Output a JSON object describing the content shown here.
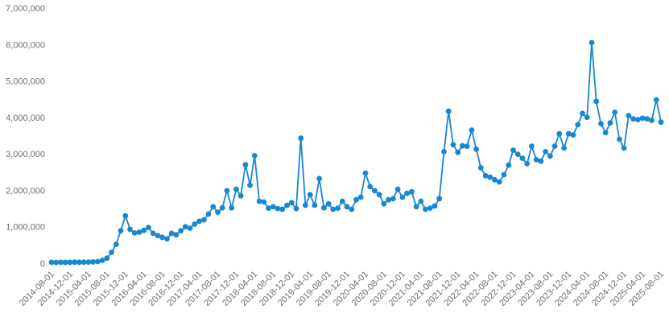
{
  "page": {
    "background": "#ffffff",
    "title": ""
  },
  "chart_data": {
    "type": "line",
    "title": "",
    "xlabel": "",
    "ylabel": "",
    "legend": null,
    "grid": false,
    "marker": "circle",
    "line_color": "#1787d2",
    "marker_color": "#1787d2",
    "axis_label_color": "#6f6f6f",
    "ylim": [
      0,
      7000000
    ],
    "x_tick_every": 4,
    "x": [
      "2014-08-01",
      "2014-09-01",
      "2014-10-01",
      "2014-11-01",
      "2014-12-01",
      "2015-01-01",
      "2015-02-01",
      "2015-03-01",
      "2015-04-01",
      "2015-05-01",
      "2015-06-01",
      "2015-07-01",
      "2015-08-01",
      "2015-09-01",
      "2015-10-01",
      "2015-11-01",
      "2015-12-01",
      "2016-01-01",
      "2016-02-01",
      "2016-03-01",
      "2016-04-01",
      "2016-05-01",
      "2016-06-01",
      "2016-07-01",
      "2016-08-01",
      "2016-09-01",
      "2016-10-01",
      "2016-11-01",
      "2016-12-01",
      "2017-01-01",
      "2017-02-01",
      "2017-03-01",
      "2017-04-01",
      "2017-05-01",
      "2017-06-01",
      "2017-07-01",
      "2017-08-01",
      "2017-09-01",
      "2017-10-01",
      "2017-11-01",
      "2017-12-01",
      "2018-01-01",
      "2018-02-01",
      "2018-03-01",
      "2018-04-01",
      "2018-05-01",
      "2018-06-01",
      "2018-07-01",
      "2018-08-01",
      "2018-09-01",
      "2018-10-01",
      "2018-11-01",
      "2018-12-01",
      "2019-01-01",
      "2019-02-01",
      "2019-03-01",
      "2019-04-01",
      "2019-05-01",
      "2019-06-01",
      "2019-07-01",
      "2019-08-01",
      "2019-09-01",
      "2019-10-01",
      "2019-11-01",
      "2019-12-01",
      "2020-01-01",
      "2020-02-01",
      "2020-03-01",
      "2020-04-01",
      "2020-05-01",
      "2020-06-01",
      "2020-07-01",
      "2020-08-01",
      "2020-09-01",
      "2020-10-01",
      "2020-11-01",
      "2020-12-01",
      "2021-01-01",
      "2021-02-01",
      "2021-03-01",
      "2021-04-01",
      "2021-05-01",
      "2021-06-01",
      "2021-07-01",
      "2021-08-01",
      "2021-09-01",
      "2021-10-01",
      "2021-11-01",
      "2021-12-01",
      "2022-01-01",
      "2022-02-01",
      "2022-03-01",
      "2022-04-01",
      "2022-05-01",
      "2022-06-01",
      "2022-07-01",
      "2022-08-01",
      "2022-09-01",
      "2022-10-01",
      "2022-11-01",
      "2022-12-01",
      "2023-01-01",
      "2023-02-01",
      "2023-03-01",
      "2023-04-01",
      "2023-05-01",
      "2023-06-01",
      "2023-07-01",
      "2023-08-01",
      "2023-09-01",
      "2023-10-01",
      "2023-11-01",
      "2023-12-01",
      "2024-01-01",
      "2024-02-01",
      "2024-03-01",
      "2024-04-01",
      "2024-05-01",
      "2024-06-01",
      "2024-07-01",
      "2024-08-01",
      "2024-09-01",
      "2024-10-01",
      "2024-11-01",
      "2024-12-01",
      "2025-01-01",
      "2025-02-01",
      "2025-03-01",
      "2025-04-01",
      "2025-05-01",
      "2025-06-01",
      "2025-07-01",
      "2025-08-01"
    ],
    "values": [
      25000,
      22000,
      24000,
      23000,
      25000,
      28000,
      26000,
      28000,
      30000,
      35000,
      45000,
      80000,
      140000,
      300000,
      520000,
      890000,
      1300000,
      930000,
      830000,
      850000,
      900000,
      980000,
      820000,
      760000,
      710000,
      670000,
      820000,
      780000,
      890000,
      1000000,
      960000,
      1070000,
      1150000,
      1190000,
      1350000,
      1550000,
      1400000,
      1520000,
      1990000,
      1520000,
      2030000,
      1850000,
      2700000,
      2140000,
      2950000,
      1700000,
      1680000,
      1510000,
      1550000,
      1500000,
      1480000,
      1590000,
      1660000,
      1500000,
      3430000,
      1590000,
      1880000,
      1590000,
      2320000,
      1520000,
      1630000,
      1480000,
      1510000,
      1700000,
      1550000,
      1480000,
      1740000,
      1810000,
      2470000,
      2100000,
      1990000,
      1880000,
      1630000,
      1740000,
      1770000,
      2030000,
      1810000,
      1920000,
      1960000,
      1550000,
      1700000,
      1480000,
      1510000,
      1570000,
      1770000,
      3060000,
      4170000,
      3250000,
      3040000,
      3220000,
      3210000,
      3650000,
      3130000,
      2620000,
      2400000,
      2360000,
      2290000,
      2230000,
      2430000,
      2690000,
      3100000,
      2990000,
      2880000,
      2730000,
      3210000,
      2840000,
      2800000,
      3060000,
      2940000,
      3210000,
      3550000,
      3160000,
      3550000,
      3520000,
      3800000,
      4110000,
      4000000,
      6050000,
      4440000,
      3830000,
      3580000,
      3850000,
      4140000,
      3400000,
      3160000,
      4050000,
      3960000,
      3940000,
      3980000,
      3960000,
      3920000,
      4480000,
      3870000
    ],
    "x_tick_labels": [
      "2014-08-01",
      "2014-12-01",
      "2015-04-01",
      "2015-08-01",
      "2015-12-01",
      "2016-04-01",
      "2016-08-01",
      "2016-12-01",
      "2017-04-01",
      "2017-08-01",
      "2017-12-01",
      "2018-04-01",
      "2018-08-01",
      "2018-12-01",
      "2019-04-01",
      "2019-08-01",
      "2019-12-01",
      "2020-04-01",
      "2020-08-01",
      "2020-12-01",
      "2021-04-01",
      "2021-08-01",
      "2021-12-01",
      "2022-04-01",
      "2022-08-01",
      "2022-12-01",
      "2023-04-01",
      "2023-08-01",
      "2023-12-01",
      "2024-04-01",
      "2024-08-01",
      "2024-12-01",
      "2025-04-01",
      "2025-08-01"
    ],
    "y_tick_labels": [
      "0",
      "1,000,000",
      "2,000,000",
      "3,000,000",
      "4,000,000",
      "5,000,000",
      "6,000,000",
      "7,000,000"
    ]
  }
}
